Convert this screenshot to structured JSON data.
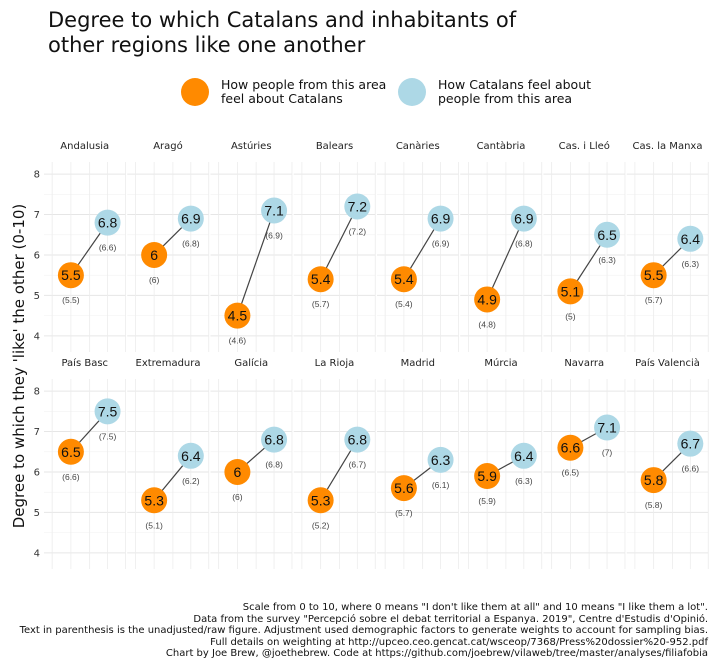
{
  "title_line1": "Degree to which Catalans and inhabitants of",
  "title_line2": "other regions like one another",
  "legend": [
    {
      "line1": "How people from this area",
      "line2": "feel about Catalans",
      "color": "#ff8a00"
    },
    {
      "line1": "How Catalans feel about",
      "line2": "people from this area",
      "color": "#add8e6"
    }
  ],
  "caption": [
    "Scale from 0 to 10, where 0 means \"I don't like them at all\" and 10 means \"I like them a lot\".",
    "Data from the survey \"Percepció sobre el debat territorial a Espanya. 2019\", Centre d'Estudis d'Opinió.",
    "Text in parenthesis is the unadjusted/raw figure. Adjustment used demographic factors to generate weights to account for sampling bias.",
    "Full details on weighting at http://upceo.ceo.gencat.cat/wsceop/7368/Press%20dossier%20-952.pdf",
    "Chart by Joe Brew, @joethebrew. Code at https://github.com/joebrew/vilaweb/tree/master/analyses/filiafobia"
  ],
  "chart_data": {
    "type": "scatter",
    "ylabel": "Degree to which they 'like' the other (0-10)",
    "ylim": [
      3.6,
      8.3
    ],
    "yticks": [
      4,
      5,
      6,
      7,
      8
    ],
    "grid": true,
    "legend_position": "top",
    "colors": {
      "about_catalans": "#ff8a00",
      "catalans_about": "#add8e6"
    },
    "panels": [
      {
        "region": "Andalusia",
        "about_catalans": 5.5,
        "about_catalans_label": "5.5",
        "about_catalans_raw": "(5.5)",
        "catalans_about": 6.8,
        "catalans_about_label": "6.8",
        "catalans_about_raw": "(6.6)"
      },
      {
        "region": "Aragó",
        "about_catalans": 6.0,
        "about_catalans_label": "6",
        "about_catalans_raw": "(6)",
        "catalans_about": 6.9,
        "catalans_about_label": "6.9",
        "catalans_about_raw": "(6.8)"
      },
      {
        "region": "Astúries",
        "about_catalans": 4.5,
        "about_catalans_label": "4.5",
        "about_catalans_raw": "(4.6)",
        "catalans_about": 7.1,
        "catalans_about_label": "7.1",
        "catalans_about_raw": "(6.9)"
      },
      {
        "region": "Balears",
        "about_catalans": 5.4,
        "about_catalans_label": "5.4",
        "about_catalans_raw": "(5.7)",
        "catalans_about": 7.2,
        "catalans_about_label": "7.2",
        "catalans_about_raw": "(7.2)"
      },
      {
        "region": "Canàries",
        "about_catalans": 5.4,
        "about_catalans_label": "5.4",
        "about_catalans_raw": "(5.4)",
        "catalans_about": 6.9,
        "catalans_about_label": "6.9",
        "catalans_about_raw": "(6.9)"
      },
      {
        "region": "Cantàbria",
        "about_catalans": 4.9,
        "about_catalans_label": "4.9",
        "about_catalans_raw": "(4.8)",
        "catalans_about": 6.9,
        "catalans_about_label": "6.9",
        "catalans_about_raw": "(6.8)"
      },
      {
        "region": "Cas. i Lleó",
        "about_catalans": 5.1,
        "about_catalans_label": "5.1",
        "about_catalans_raw": "(5)",
        "catalans_about": 6.5,
        "catalans_about_label": "6.5",
        "catalans_about_raw": "(6.3)"
      },
      {
        "region": "Cas. la Manxa",
        "about_catalans": 5.5,
        "about_catalans_label": "5.5",
        "about_catalans_raw": "(5.7)",
        "catalans_about": 6.4,
        "catalans_about_label": "6.4",
        "catalans_about_raw": "(6.3)"
      },
      {
        "region": "País Basc",
        "about_catalans": 6.5,
        "about_catalans_label": "6.5",
        "about_catalans_raw": "(6.6)",
        "catalans_about": 7.5,
        "catalans_about_label": "7.5",
        "catalans_about_raw": "(7.5)"
      },
      {
        "region": "Extremadura",
        "about_catalans": 5.3,
        "about_catalans_label": "5.3",
        "about_catalans_raw": "(5.1)",
        "catalans_about": 6.4,
        "catalans_about_label": "6.4",
        "catalans_about_raw": "(6.2)"
      },
      {
        "region": "Galícia",
        "about_catalans": 6.0,
        "about_catalans_label": "6",
        "about_catalans_raw": "(6)",
        "catalans_about": 6.8,
        "catalans_about_label": "6.8",
        "catalans_about_raw": "(6.8)"
      },
      {
        "region": "La Rioja",
        "about_catalans": 5.3,
        "about_catalans_label": "5.3",
        "about_catalans_raw": "(5.2)",
        "catalans_about": 6.8,
        "catalans_about_label": "6.8",
        "catalans_about_raw": "(6.7)"
      },
      {
        "region": "Madrid",
        "about_catalans": 5.6,
        "about_catalans_label": "5.6",
        "about_catalans_raw": "(5.7)",
        "catalans_about": 6.3,
        "catalans_about_label": "6.3",
        "catalans_about_raw": "(6.1)"
      },
      {
        "region": "Múrcia",
        "about_catalans": 5.9,
        "about_catalans_label": "5.9",
        "about_catalans_raw": "(5.9)",
        "catalans_about": 6.4,
        "catalans_about_label": "6.4",
        "catalans_about_raw": "(6.3)"
      },
      {
        "region": "Navarra",
        "about_catalans": 6.6,
        "about_catalans_label": "6.6",
        "about_catalans_raw": "(6.5)",
        "catalans_about": 7.1,
        "catalans_about_label": "7.1",
        "catalans_about_raw": "(7)"
      },
      {
        "region": "País Valencià",
        "about_catalans": 5.8,
        "about_catalans_label": "5.8",
        "about_catalans_raw": "(5.8)",
        "catalans_about": 6.7,
        "catalans_about_label": "6.7",
        "catalans_about_raw": "(6.6)"
      }
    ]
  }
}
